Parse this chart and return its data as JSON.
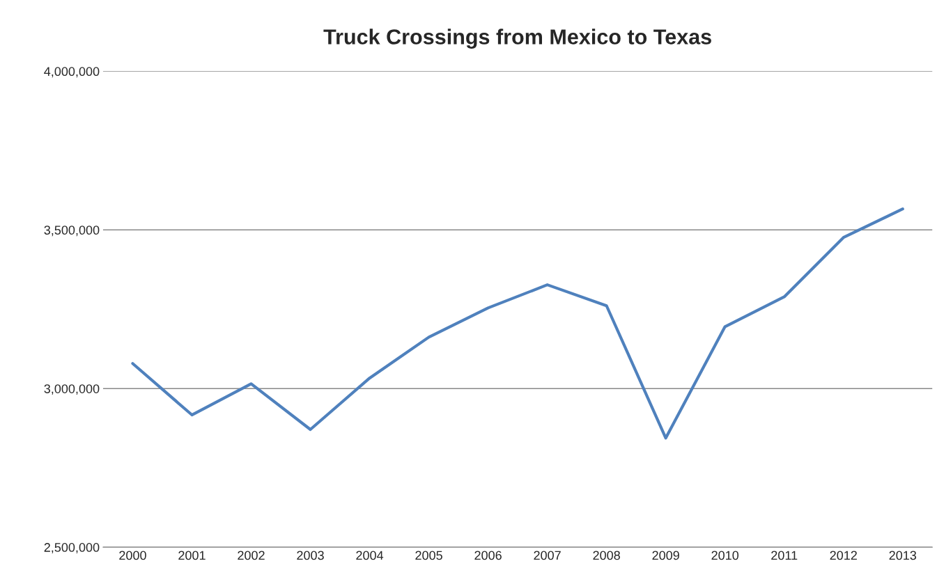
{
  "chart_data": {
    "type": "line",
    "title": "Truck Crossings from Mexico to Texas",
    "categories": [
      "2000",
      "2001",
      "2002",
      "2003",
      "2004",
      "2005",
      "2006",
      "2007",
      "2008",
      "2009",
      "2010",
      "2011",
      "2012",
      "2013"
    ],
    "series": [
      {
        "color": "#4f81bd",
        "values": [
          3079000,
          2917000,
          3015000,
          2871000,
          3033000,
          3162000,
          3254000,
          3327000,
          3261000,
          2844000,
          3195000,
          3289000,
          3476000,
          3566000
        ]
      }
    ],
    "ylim": [
      2500000,
      4000000
    ],
    "yticks": [
      {
        "value": 2500000,
        "label": "2,500,000"
      },
      {
        "value": 3000000,
        "label": "3,000,000"
      },
      {
        "value": 3500000,
        "label": "3,500,000"
      },
      {
        "value": 4000000,
        "label": "4,000,000"
      }
    ],
    "grid": "y",
    "marker": "none",
    "line_style": "solid"
  }
}
